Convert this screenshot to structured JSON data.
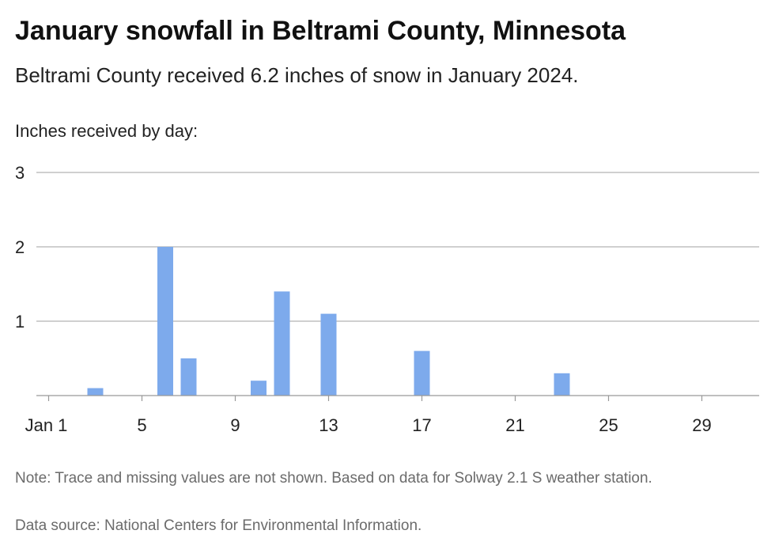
{
  "title": "January snowfall in Beltrami County, Minnesota",
  "subtitle": "Beltrami County received 6.2 inches of snow in January 2024.",
  "note": "Note: Trace and missing values are not shown. Based on data for Solway 2.1 S weather station.",
  "source": "Data source: National Centers for Environmental Information.",
  "colors": {
    "bar": "#7daaec",
    "grid": "#b3b3b3",
    "axis": "#999999"
  },
  "chart_data": {
    "type": "bar",
    "title": "January snowfall in Beltrami County, Minnesota",
    "ylabel": "Inches received by day:",
    "xlabel": "",
    "x": [
      3,
      6,
      7,
      10,
      11,
      13,
      17,
      23
    ],
    "values": [
      0.1,
      2.0,
      0.5,
      0.2,
      1.4,
      1.1,
      0.6,
      0.3
    ],
    "xlim": [
      1,
      31
    ],
    "ylim": [
      0,
      3
    ],
    "y_ticks": [
      1,
      2,
      3
    ],
    "x_ticks": [
      {
        "day": 1,
        "label": "Jan 1"
      },
      {
        "day": 5,
        "label": "5"
      },
      {
        "day": 9,
        "label": "9"
      },
      {
        "day": 13,
        "label": "13"
      },
      {
        "day": 17,
        "label": "17"
      },
      {
        "day": 21,
        "label": "21"
      },
      {
        "day": 25,
        "label": "25"
      },
      {
        "day": 29,
        "label": "29"
      }
    ],
    "grid": true,
    "legend": "none"
  }
}
